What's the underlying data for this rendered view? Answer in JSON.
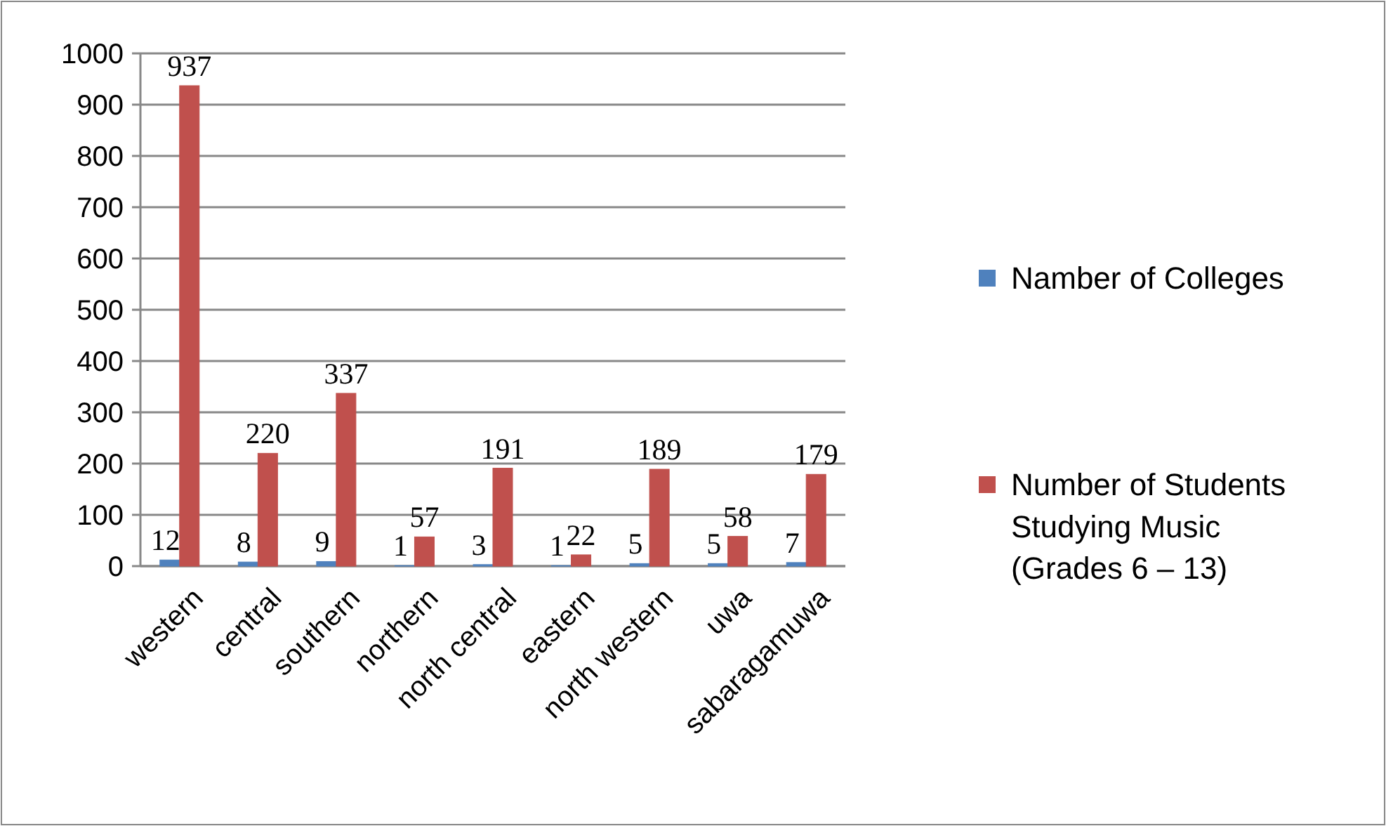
{
  "chart_data": {
    "type": "bar",
    "categories": [
      "western",
      "central",
      "southern",
      "northern",
      "north central",
      "eastern",
      "north western",
      "uwa",
      "sabaragamuwa"
    ],
    "series": [
      {
        "name": "Namber of Colleges",
        "color": "#4f81bd",
        "values": [
          12,
          8,
          9,
          1,
          3,
          1,
          5,
          5,
          7
        ]
      },
      {
        "name": "Number of Students Studying Music (Grades 6 – 13)",
        "color": "#c0504d",
        "values": [
          937,
          220,
          337,
          57,
          191,
          22,
          189,
          58,
          179
        ]
      }
    ],
    "ylim": [
      0,
      1000
    ],
    "yticks": [
      0,
      100,
      200,
      300,
      400,
      500,
      600,
      700,
      800,
      900,
      1000
    ],
    "grid": "y",
    "legend": "right",
    "data_labels": true
  }
}
